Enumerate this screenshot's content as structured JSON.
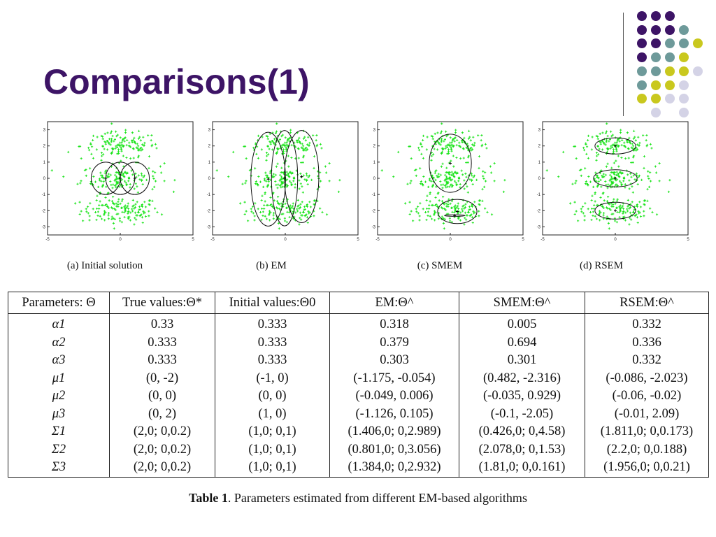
{
  "slide": {
    "title": "Comparisons(1)",
    "colors": {
      "title": "#3d1466",
      "purple": "#3d1466",
      "teal": "#6e9a9a",
      "yellow": "#c9c81e",
      "lavender": "#d4d3e6",
      "points": "#16e316"
    }
  },
  "figures": [
    {
      "caption": "(a) Initial solution"
    },
    {
      "caption": "(b) EM"
    },
    {
      "caption": "(c) SMEM"
    },
    {
      "caption": "(d) RSEM"
    }
  ],
  "axes": {
    "x_ticks": [
      "-5",
      "0",
      "5"
    ],
    "y_ticks": [
      "3",
      "2",
      "1",
      "0",
      "-1",
      "-2",
      "-3"
    ]
  },
  "table": {
    "headers": {
      "params": "Parameters: Θ",
      "true": "True values:Θ*",
      "initial": "Initial values:Θ0",
      "em": "EM:Θ^",
      "smem": "SMEM:Θ^",
      "rsem": "RSEM:Θ^"
    },
    "rows": [
      {
        "param": "α1",
        "true": "0.33",
        "initial": "0.333",
        "em": "0.318",
        "smem": "0.005",
        "rsem": "0.332"
      },
      {
        "param": "α2",
        "true": "0.333",
        "initial": "0.333",
        "em": "0.379",
        "smem": "0.694",
        "rsem": "0.336"
      },
      {
        "param": "α3",
        "true": "0.333",
        "initial": "0.333",
        "em": "0.303",
        "smem": "0.301",
        "rsem": "0.332"
      },
      {
        "param": "μ1",
        "true": "(0, -2)",
        "initial": "(-1, 0)",
        "em": "(-1.175, -0.054)",
        "smem": "(0.482, -2.316)",
        "rsem": "(-0.086, -2.023)"
      },
      {
        "param": "μ2",
        "true": "(0, 0)",
        "initial": "(0, 0)",
        "em": "(-0.049, 0.006)",
        "smem": "(-0.035, 0.929)",
        "rsem": "(-0.06, -0.02)"
      },
      {
        "param": "μ3",
        "true": "(0, 2)",
        "initial": "(1, 0)",
        "em": "(-1.126, 0.105)",
        "smem": "(-0.1, -2.05)",
        "rsem": "(-0.01, 2.09)"
      },
      {
        "param": "Σ1",
        "true": "(2,0; 0,0.2)",
        "initial": "(1,0; 0,1)",
        "em": "(1.406,0; 0,2.989)",
        "smem": "(0.426,0; 0,4.58)",
        "rsem": "(1.811,0; 0,0.173)"
      },
      {
        "param": "Σ2",
        "true": "(2,0; 0,0.2)",
        "initial": "(1,0; 0,1)",
        "em": "(0.801,0; 0,3.056)",
        "smem": "(2.078,0; 0,1.53)",
        "rsem": "(2.2,0; 0,0.188)"
      },
      {
        "param": "Σ3",
        "true": "(2,0; 0,0.2)",
        "initial": "(1,0; 0,1)",
        "em": "(1.384,0; 0,2.932)",
        "smem": "(1.81,0; 0,0.161)",
        "rsem": "(1.956,0; 0,0.21)"
      }
    ],
    "caption_label": "Table 1",
    "caption_text": ". Parameters estimated from different EM-based algorithms"
  }
}
